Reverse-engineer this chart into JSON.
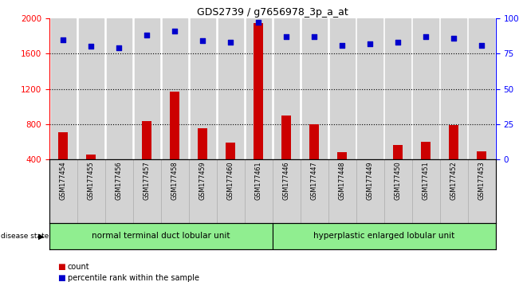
{
  "title": "GDS2739 / g7656978_3p_a_at",
  "samples": [
    "GSM177454",
    "GSM177455",
    "GSM177456",
    "GSM177457",
    "GSM177458",
    "GSM177459",
    "GSM177460",
    "GSM177461",
    "GSM177446",
    "GSM177447",
    "GSM177448",
    "GSM177449",
    "GSM177450",
    "GSM177451",
    "GSM177452",
    "GSM177453"
  ],
  "counts": [
    710,
    450,
    390,
    830,
    1165,
    750,
    590,
    1950,
    900,
    800,
    480,
    380,
    560,
    600,
    790,
    490
  ],
  "percentiles": [
    85,
    80,
    79,
    88,
    91,
    84,
    83,
    97,
    87,
    87,
    81,
    82,
    83,
    87,
    86,
    81
  ],
  "group1_label": "normal terminal duct lobular unit",
  "group2_label": "hyperplastic enlarged lobular unit",
  "group1_count": 8,
  "group2_count": 8,
  "disease_state_label": "disease state",
  "ylim_left": [
    400,
    2000
  ],
  "ylim_right": [
    0,
    100
  ],
  "yticks_left": [
    400,
    800,
    1200,
    1600,
    2000
  ],
  "yticks_right": [
    0,
    25,
    50,
    75,
    100
  ],
  "ytick_labels_right": [
    "0",
    "25",
    "50",
    "75",
    "100%"
  ],
  "bar_color": "#cc0000",
  "scatter_color": "#0000cc",
  "bar_bg": "#d3d3d3",
  "group_bg": "#90ee90",
  "legend_count_color": "#cc0000",
  "legend_pct_color": "#0000cc",
  "dotted_lines": [
    800,
    1200,
    1600
  ]
}
